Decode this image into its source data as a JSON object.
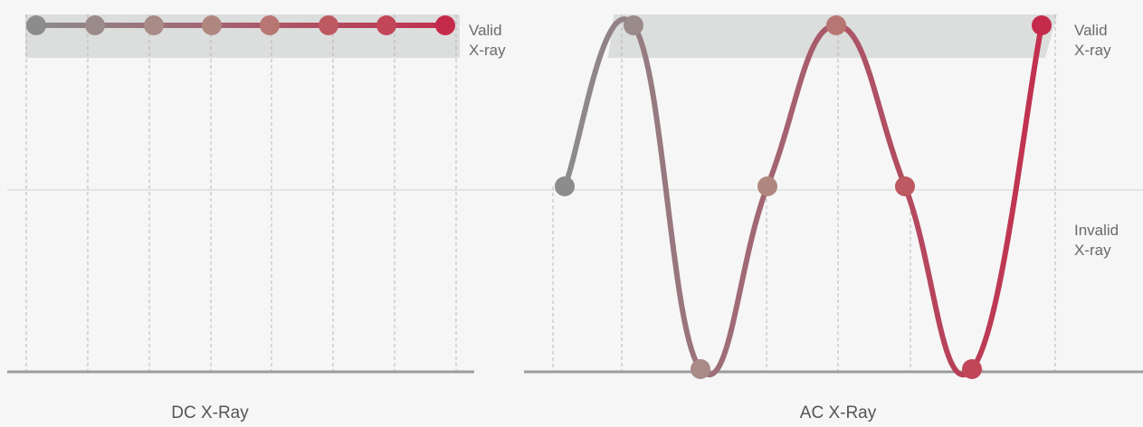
{
  "dc": {
    "caption": "DC X-Ray",
    "valid_label": [
      "Valid",
      "X-ray"
    ],
    "levels": [
      1,
      1,
      1,
      1,
      1,
      1,
      1,
      1
    ]
  },
  "ac": {
    "caption": "AC X-Ray",
    "valid_label": [
      "Valid",
      "X-ray"
    ],
    "invalid_label": [
      "Invalid",
      "X-ray"
    ],
    "levels": [
      0,
      1,
      -1,
      0,
      1,
      0,
      -1,
      1
    ]
  },
  "colors": {
    "background": "#f6f6f6",
    "valid_band": "#dcdddd",
    "grid_dashed": "#b8b8b8",
    "grid_solid": "#d0d0d0",
    "baseline": "#9c9c9c",
    "gradient_start": "#8c8c8c",
    "gradient_end": "#c2304e",
    "point_colors": [
      "#8c8c8c",
      "#9a8a8a",
      "#a88a86",
      "#b0877f",
      "#b87672",
      "#bd5960",
      "#c14658",
      "#c42a4a"
    ]
  }
}
